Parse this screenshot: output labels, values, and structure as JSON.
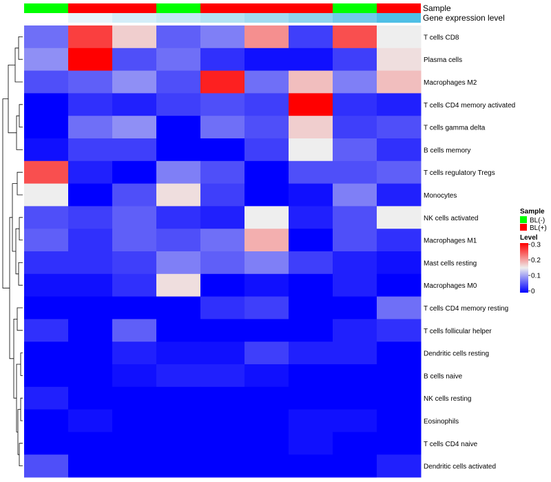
{
  "chart_data": {
    "type": "heatmap",
    "title": "",
    "annotation_tracks": [
      {
        "name": "Sample",
        "colors": [
          "#00ff00",
          "#ff0000",
          "#ff0000",
          "#00ff00",
          "#ff0000",
          "#ff0000",
          "#ff0000",
          "#00ff00",
          "#ff0000"
        ]
      },
      {
        "name": "Gene expression level",
        "colors": [
          "#ffffff",
          "#e8f5fb",
          "#d4eef8",
          "#c4e8f6",
          "#b3e2f3",
          "#a1dbf1",
          "#8ed3ee",
          "#71c9ea",
          "#4fbfe6"
        ]
      }
    ],
    "rows": [
      "T cells CD8",
      "Plasma cells",
      "Macrophages M2",
      "T cells CD4 memory activated",
      "T cells gamma delta",
      "B cells memory",
      "T cells regulatory  Tregs",
      "Monocytes",
      "NK cells activated",
      "Macrophages M1",
      "Mast cells resting",
      "Macrophages M0",
      "T cells CD4 memory resting",
      "T cells follicular helper",
      "Dendritic cells resting",
      "B cells naive",
      "NK cells resting",
      "Eosinophils",
      "T cells CD4 naive",
      "Dendritic cells activated"
    ],
    "n_columns": 9,
    "values": [
      [
        0.07,
        0.26,
        0.17,
        0.06,
        0.08,
        0.21,
        0.04,
        0.25,
        0.15
      ],
      [
        0.09,
        0.3,
        0.05,
        0.07,
        0.03,
        0.01,
        0.01,
        0.04,
        0.16
      ],
      [
        0.05,
        0.06,
        0.09,
        0.05,
        0.28,
        0.07,
        0.18,
        0.08,
        0.18
      ],
      [
        0.0,
        0.03,
        0.02,
        0.04,
        0.05,
        0.04,
        0.3,
        0.03,
        0.02
      ],
      [
        0.0,
        0.07,
        0.09,
        0.0,
        0.07,
        0.05,
        0.17,
        0.04,
        0.05
      ],
      [
        0.01,
        0.04,
        0.04,
        0.0,
        0.0,
        0.04,
        0.15,
        0.06,
        0.03
      ],
      [
        0.25,
        0.02,
        0.0,
        0.08,
        0.05,
        0.0,
        0.05,
        0.05,
        0.06
      ],
      [
        0.15,
        0.0,
        0.05,
        0.16,
        0.04,
        0.0,
        0.01,
        0.08,
        0.02
      ],
      [
        0.05,
        0.04,
        0.06,
        0.03,
        0.02,
        0.15,
        0.02,
        0.05,
        0.15
      ],
      [
        0.06,
        0.03,
        0.06,
        0.05,
        0.07,
        0.19,
        0.0,
        0.05,
        0.03
      ],
      [
        0.03,
        0.03,
        0.04,
        0.08,
        0.06,
        0.08,
        0.04,
        0.02,
        0.01
      ],
      [
        0.01,
        0.01,
        0.03,
        0.16,
        0.0,
        0.01,
        0.0,
        0.02,
        0.0
      ],
      [
        0.0,
        0.0,
        0.0,
        0.0,
        0.03,
        0.04,
        0.0,
        0.0,
        0.07
      ],
      [
        0.03,
        0.0,
        0.06,
        0.0,
        0.0,
        0.0,
        0.0,
        0.02,
        0.03
      ],
      [
        0.0,
        0.0,
        0.02,
        0.01,
        0.01,
        0.04,
        0.02,
        0.02,
        0.0
      ],
      [
        0.0,
        0.0,
        0.01,
        0.02,
        0.02,
        0.01,
        0.0,
        0.0,
        0.0
      ],
      [
        0.02,
        0.0,
        0.0,
        0.0,
        0.0,
        0.0,
        0.0,
        0.0,
        0.0
      ],
      [
        0.0,
        0.01,
        0.0,
        0.0,
        0.0,
        0.0,
        0.01,
        0.01,
        0.0
      ],
      [
        0.0,
        0.0,
        0.0,
        0.0,
        0.0,
        0.0,
        0.01,
        0.0,
        0.0
      ],
      [
        0.05,
        0.0,
        0.0,
        0.0,
        0.0,
        0.0,
        0.0,
        0.0,
        0.02
      ]
    ],
    "color_scale": {
      "low": "#0000ff",
      "mid": "#eeeeee",
      "high": "#ff0000",
      "range": [
        0,
        0.3
      ],
      "midpoint": 0.15
    },
    "legend": {
      "sample_title": "Sample",
      "sample_items": [
        {
          "label": "BL(-)",
          "color": "#00ff00"
        },
        {
          "label": "BL(+)",
          "color": "#ff0000"
        }
      ],
      "level_title": "Level",
      "level_ticks": [
        "0.3",
        "0.2",
        "0.1",
        "0"
      ]
    },
    "row_dendrogram": true
  }
}
